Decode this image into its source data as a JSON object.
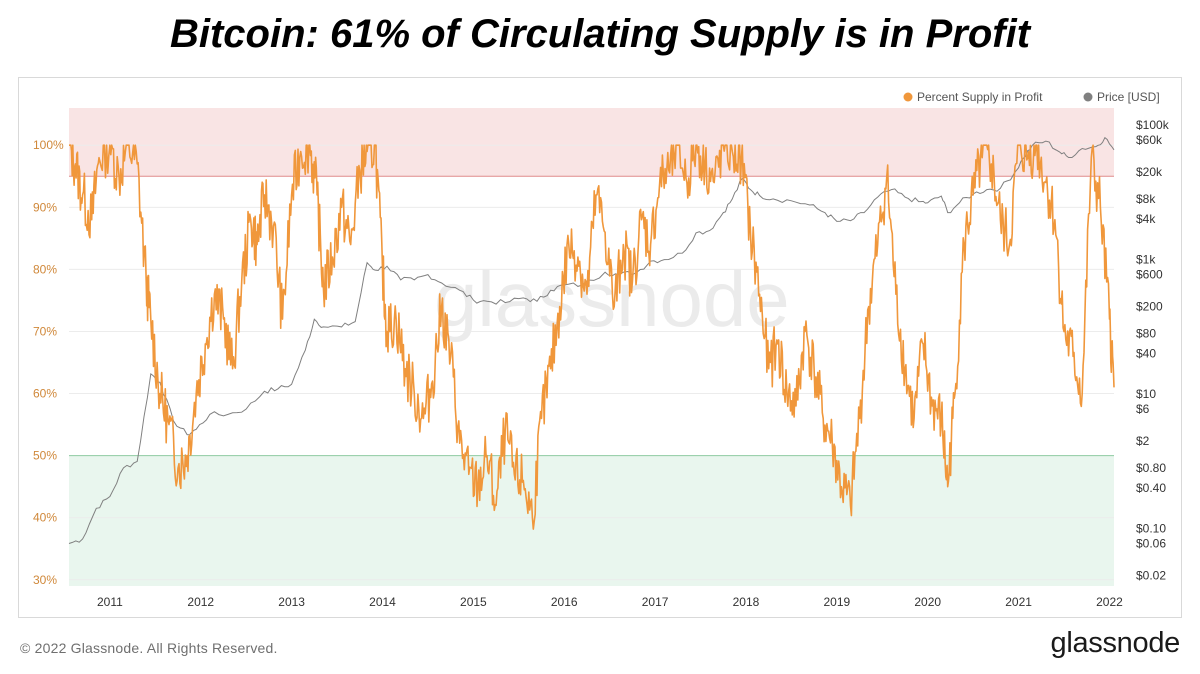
{
  "title": "Bitcoin: 61% of Circulating Supply is in Profit",
  "footer": {
    "copyright": "© 2022 Glassnode. All Rights Reserved.",
    "brand": "glassnode"
  },
  "watermark": "glassnode",
  "colors": {
    "supply": "#f0973b",
    "price": "#808080",
    "upper_zone": "#f9e4e4",
    "lower_zone": "#e9f6ee",
    "upper_line": "#e08a8a",
    "lower_line": "#8fcca3"
  },
  "chart_data": {
    "type": "line",
    "title": "Bitcoin: 61% of Circulating Supply is in Profit",
    "xlabel": "",
    "ylabel": "",
    "x_ticks": [
      "2011",
      "2012",
      "2013",
      "2014",
      "2015",
      "2016",
      "2017",
      "2018",
      "2019",
      "2020",
      "2021",
      "2022"
    ],
    "y_left_ticks": [
      "30%",
      "40%",
      "50%",
      "60%",
      "70%",
      "80%",
      "90%",
      "100%"
    ],
    "y_left_range": [
      29,
      106
    ],
    "y_right_ticks": [
      {
        "label": "$100k",
        "v": 100000
      },
      {
        "label": "$60k",
        "v": 60000
      },
      {
        "label": "$20k",
        "v": 20000
      },
      {
        "label": "$8k",
        "v": 8000
      },
      {
        "label": "$4k",
        "v": 4000
      },
      {
        "label": "$1k",
        "v": 1000
      },
      {
        "label": "$600",
        "v": 600
      },
      {
        "label": "$200",
        "v": 200
      },
      {
        "label": "$80",
        "v": 80
      },
      {
        "label": "$40",
        "v": 40
      },
      {
        "label": "$10",
        "v": 10
      },
      {
        "label": "$6",
        "v": 6
      },
      {
        "label": "$2",
        "v": 2
      },
      {
        "label": "$0.80",
        "v": 0.8
      },
      {
        "label": "$0.40",
        "v": 0.4
      },
      {
        "label": "$0.10",
        "v": 0.1
      },
      {
        "label": "$0.06",
        "v": 0.06
      },
      {
        "label": "$0.02",
        "v": 0.02
      }
    ],
    "y_right_scale": "log",
    "bands": {
      "upper_from": 95,
      "lower_to": 50
    },
    "legend": [
      "Percent Supply in Profit",
      "Price [USD]"
    ],
    "legend_position": "top-right",
    "series": [
      {
        "name": "Percent Supply in Profit",
        "axis": "left",
        "x": [
          2010.55,
          2010.62,
          2010.7,
          2010.8,
          2010.88,
          2011.0,
          2011.1,
          2011.2,
          2011.3,
          2011.4,
          2011.45,
          2011.55,
          2011.65,
          2011.75,
          2011.85,
          2011.95,
          2012.05,
          2012.15,
          2012.25,
          2012.35,
          2012.45,
          2012.55,
          2012.62,
          2012.7,
          2012.8,
          2012.9,
          2013.0,
          2013.1,
          2013.2,
          2013.28,
          2013.35,
          2013.45,
          2013.55,
          2013.65,
          2013.75,
          2013.83,
          2013.92,
          2014.0,
          2014.05,
          2014.15,
          2014.25,
          2014.35,
          2014.45,
          2014.55,
          2014.65,
          2014.75,
          2014.85,
          2014.95,
          2015.05,
          2015.15,
          2015.25,
          2015.35,
          2015.45,
          2015.55,
          2015.65,
          2015.75,
          2015.85,
          2015.95,
          2016.05,
          2016.15,
          2016.25,
          2016.35,
          2016.45,
          2016.55,
          2016.65,
          2016.75,
          2016.85,
          2016.95,
          2017.05,
          2017.15,
          2017.25,
          2017.35,
          2017.45,
          2017.55,
          2017.65,
          2017.75,
          2017.85,
          2017.95,
          2018.05,
          2018.15,
          2018.25,
          2018.35,
          2018.45,
          2018.55,
          2018.65,
          2018.75,
          2018.85,
          2018.95,
          2019.05,
          2019.15,
          2019.25,
          2019.35,
          2019.45,
          2019.55,
          2019.65,
          2019.75,
          2019.85,
          2019.95,
          2020.05,
          2020.15,
          2020.22,
          2020.3,
          2020.4,
          2020.5,
          2020.6,
          2020.7,
          2020.8,
          2020.9,
          2021.0,
          2021.1,
          2021.2,
          2021.3,
          2021.4,
          2021.5,
          2021.6,
          2021.7,
          2021.8,
          2021.9,
          2022.0,
          2022.05
        ],
        "y": [
          100,
          97,
          92,
          88,
          98,
          100,
          95,
          100,
          97,
          78,
          72,
          60,
          55,
          48,
          50,
          60,
          68,
          76,
          72,
          64,
          78,
          88,
          84,
          92,
          87,
          72,
          92,
          99,
          100,
          92,
          77,
          82,
          90,
          84,
          96,
          99,
          100,
          80,
          70,
          72,
          64,
          60,
          56,
          62,
          74,
          66,
          52,
          47,
          45,
          50,
          42,
          54,
          47,
          46,
          40,
          56,
          64,
          74,
          84,
          82,
          76,
          92,
          86,
          74,
          84,
          78,
          88,
          84,
          94,
          96,
          100,
          94,
          100,
          97,
          94,
          100,
          99,
          98,
          86,
          76,
          64,
          68,
          60,
          58,
          70,
          64,
          56,
          52,
          45,
          42,
          56,
          74,
          84,
          95,
          76,
          64,
          56,
          68,
          58,
          56,
          45,
          60,
          84,
          92,
          98,
          97,
          88,
          84,
          100,
          98,
          100,
          94,
          88,
          70,
          66,
          60,
          98,
          90,
          72,
          61
        ]
      },
      {
        "name": "Price [USD]",
        "axis": "right",
        "x": [
          2010.55,
          2010.7,
          2010.85,
          2011.0,
          2011.15,
          2011.3,
          2011.45,
          2011.55,
          2011.7,
          2011.85,
          2011.95,
          2012.1,
          2012.3,
          2012.5,
          2012.7,
          2012.85,
          2013.0,
          2013.15,
          2013.25,
          2013.35,
          2013.55,
          2013.7,
          2013.83,
          2013.92,
          2014.05,
          2014.2,
          2014.35,
          2014.5,
          2014.65,
          2014.85,
          2015.0,
          2015.15,
          2015.35,
          2015.55,
          2015.7,
          2015.85,
          2016.0,
          2016.2,
          2016.45,
          2016.6,
          2016.8,
          2016.95,
          2017.1,
          2017.3,
          2017.45,
          2017.6,
          2017.75,
          2017.85,
          2017.96,
          2018.05,
          2018.15,
          2018.3,
          2018.5,
          2018.7,
          2018.87,
          2019.0,
          2019.15,
          2019.3,
          2019.45,
          2019.6,
          2019.75,
          2019.9,
          2020.0,
          2020.15,
          2020.22,
          2020.35,
          2020.5,
          2020.65,
          2020.8,
          2020.95,
          2021.05,
          2021.15,
          2021.3,
          2021.45,
          2021.55,
          2021.7,
          2021.85,
          2021.95,
          2022.05
        ],
        "y": [
          0.06,
          0.07,
          0.2,
          0.3,
          0.8,
          1.0,
          20,
          15,
          4,
          2.5,
          3,
          5,
          5,
          6,
          11,
          12,
          14,
          45,
          130,
          100,
          100,
          120,
          900,
          700,
          800,
          500,
          500,
          600,
          450,
          350,
          250,
          240,
          230,
          270,
          240,
          350,
          420,
          420,
          650,
          600,
          650,
          950,
          1000,
          1250,
          2500,
          2700,
          5000,
          8000,
          16000,
          11000,
          9000,
          8000,
          7500,
          6500,
          5000,
          3700,
          3800,
          5000,
          8500,
          11000,
          8500,
          7300,
          7000,
          8800,
          5000,
          7000,
          9500,
          11000,
          11500,
          19000,
          32000,
          50000,
          58000,
          40000,
          33000,
          45000,
          48000,
          65000,
          43000
        ]
      }
    ]
  }
}
